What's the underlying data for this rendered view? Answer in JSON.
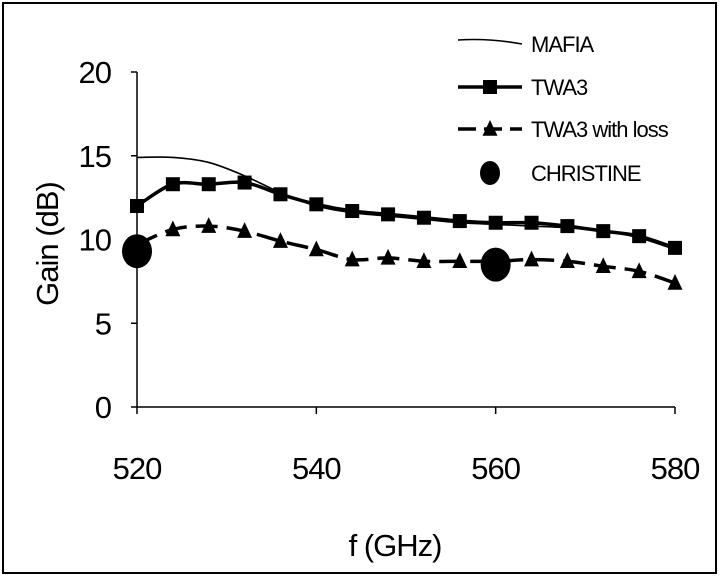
{
  "chart_data": {
    "type": "line",
    "title": "",
    "xlabel": "f (GHz)",
    "ylabel": "Gain (dB)",
    "xlim": [
      520,
      580
    ],
    "ylim": [
      0,
      20
    ],
    "x_ticks": [
      "520",
      "540",
      "560",
      "580"
    ],
    "y_ticks": [
      "0",
      "5",
      "10",
      "15",
      "20"
    ],
    "legend_position": "top-right",
    "series": [
      {
        "name": "MAFIA",
        "style": "line",
        "color": "#000000",
        "x": [
          520,
          524,
          528,
          532,
          536,
          540,
          544,
          548,
          552,
          556,
          560,
          564,
          568,
          572,
          576,
          580
        ],
        "y": [
          14.9,
          14.9,
          14.6,
          13.8,
          12.8,
          12.0,
          11.6,
          11.4,
          11.2,
          11.0,
          10.9,
          10.8,
          10.7,
          10.5,
          10.1,
          9.4
        ]
      },
      {
        "name": "TWA3",
        "style": "line-square",
        "color": "#000000",
        "x": [
          520,
          524,
          528,
          532,
          536,
          540,
          544,
          548,
          552,
          556,
          560,
          564,
          568,
          572,
          576,
          580
        ],
        "y": [
          12.0,
          13.3,
          13.3,
          13.4,
          12.7,
          12.1,
          11.7,
          11.5,
          11.3,
          11.1,
          11.0,
          11.0,
          10.8,
          10.5,
          10.2,
          9.5
        ]
      },
      {
        "name": "TWA3 with loss",
        "style": "line-triangle",
        "color": "#000000",
        "x": [
          520,
          524,
          528,
          532,
          536,
          540,
          544,
          548,
          552,
          556,
          560,
          564,
          568,
          572,
          576,
          580
        ],
        "y": [
          9.7,
          10.6,
          10.8,
          10.5,
          9.9,
          9.4,
          8.8,
          8.9,
          8.7,
          8.7,
          8.7,
          8.8,
          8.7,
          8.4,
          8.1,
          7.4
        ]
      },
      {
        "name": "CHRISTINE",
        "style": "circle",
        "color": "#000000",
        "x": [
          520,
          560
        ],
        "y": [
          9.3,
          8.5
        ]
      }
    ]
  }
}
